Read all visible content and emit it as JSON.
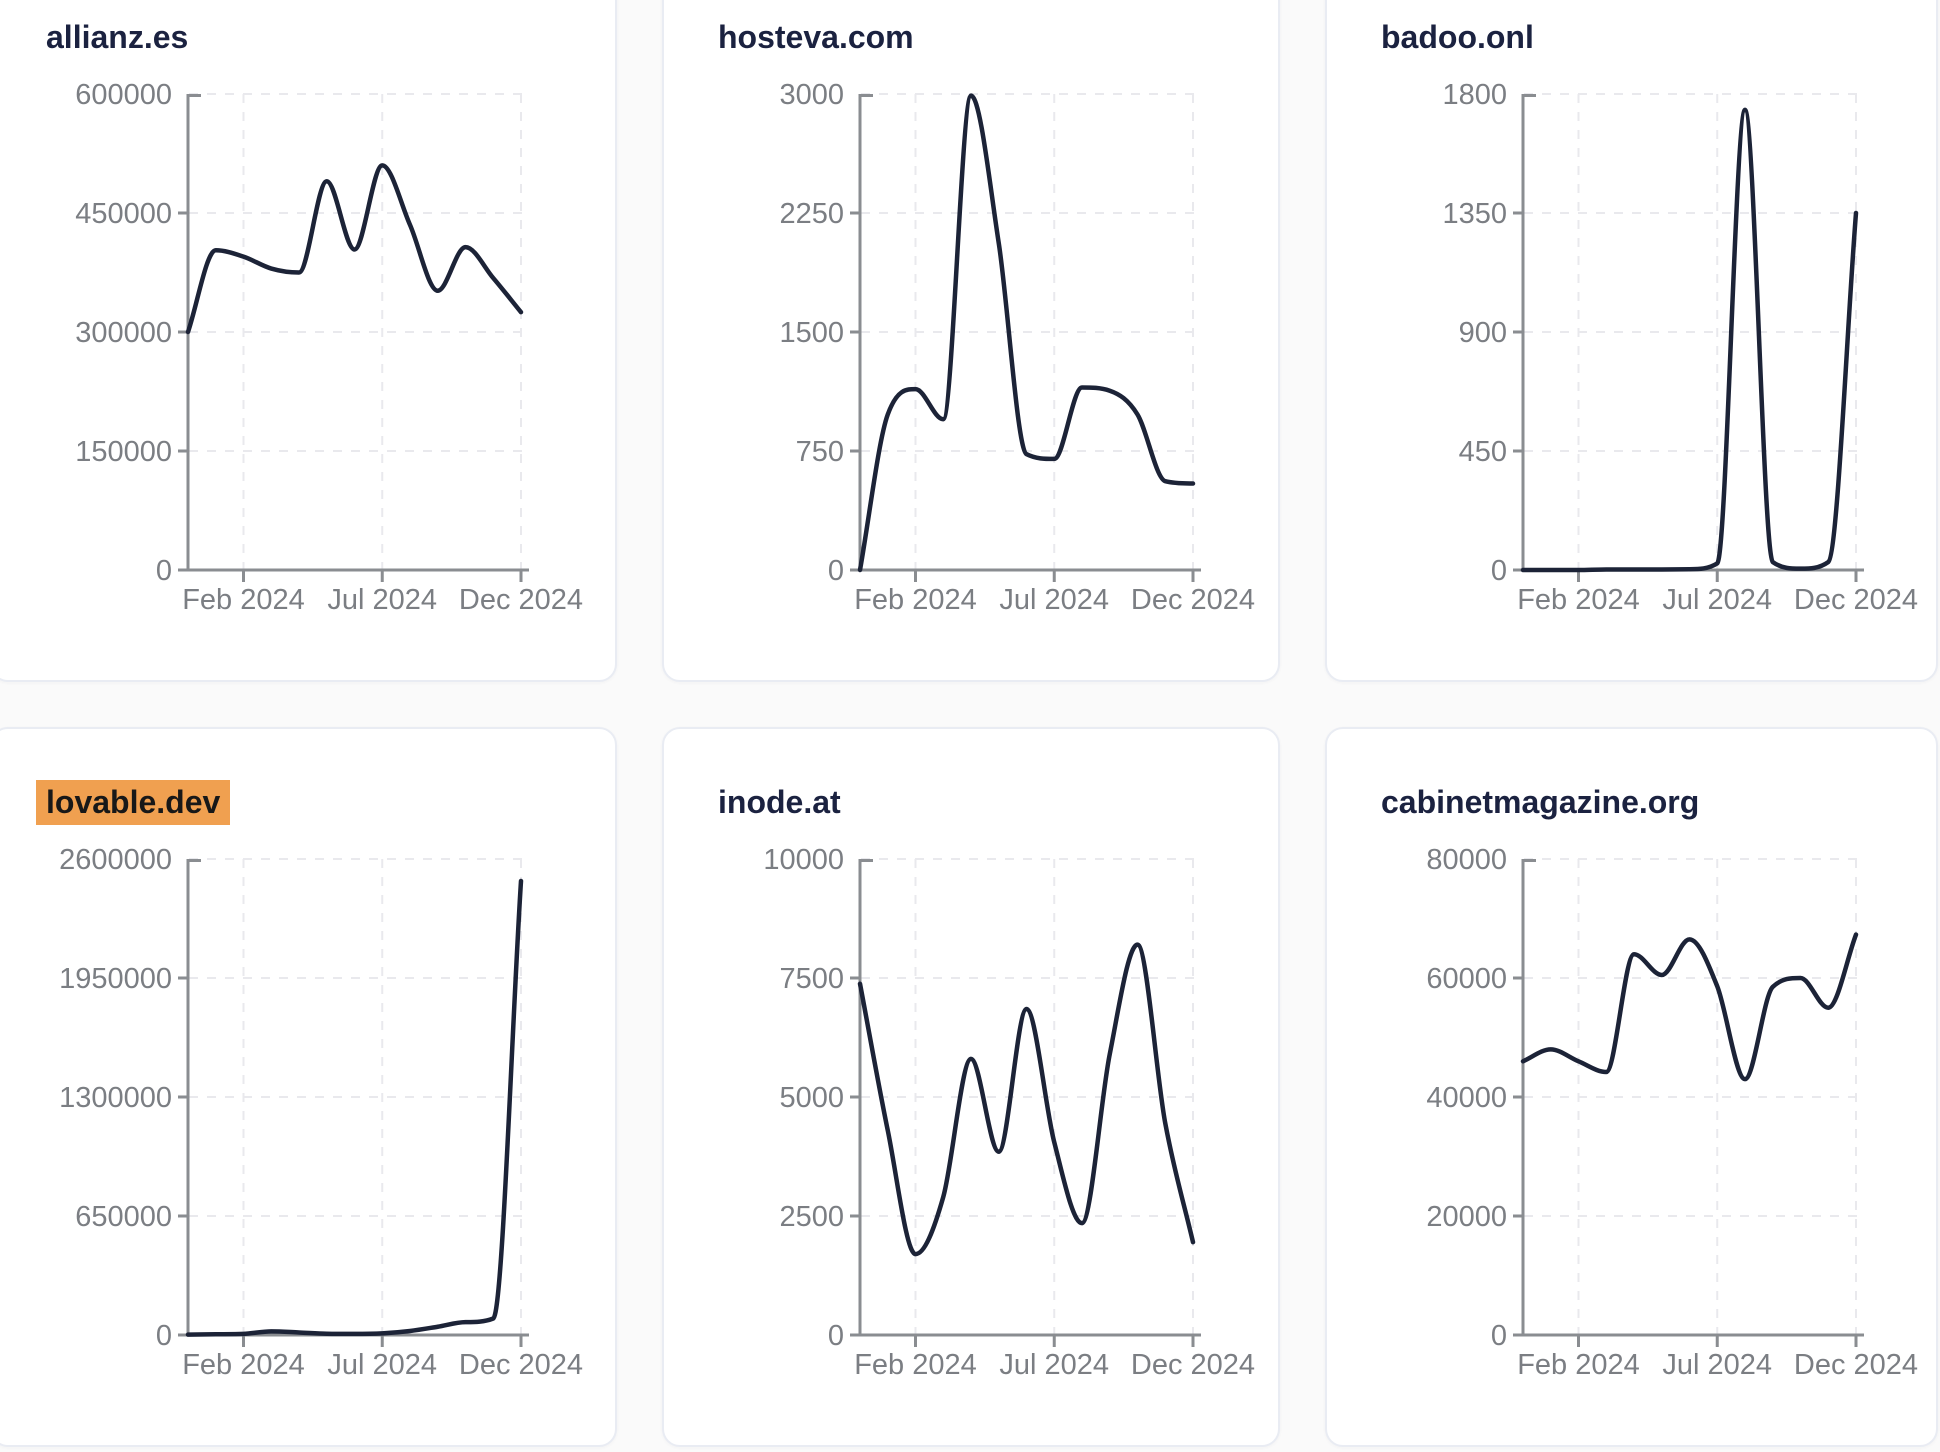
{
  "page": {
    "description": "Dashboard of six sparkline-style traffic charts for domains, Dec 2023 - Dec 2024",
    "x_tick_labels": [
      "Feb 2024",
      "Jul 2024",
      "Dec 2024"
    ]
  },
  "styles": {
    "page_bg": "#fafafa",
    "card_bg": "#ffffff",
    "card_border": "#e9ecf3",
    "title_color": "#1b2240",
    "highlight_bg": "#f0a050",
    "highlight_text": "#181818",
    "line_color": "#1c2337",
    "axis_color": "#8a8d91",
    "tick_label_color": "#7b7e83",
    "grid_color": "#e9e9ed"
  },
  "chart_data": [
    {
      "type": "line",
      "title": "allianz.es",
      "title_highlighted": false,
      "x": [
        "Dec 2023",
        "Jan 2024",
        "Feb 2024",
        "Mar 2024",
        "Apr 2024",
        "May 2024",
        "Jun 2024",
        "Jul 2024",
        "Aug 2024",
        "Sep 2024",
        "Oct 2024",
        "Nov 2024",
        "Dec 2024"
      ],
      "values": [
        300000,
        403000,
        395000,
        380000,
        375000,
        490000,
        404000,
        510000,
        435000,
        352000,
        407000,
        368000,
        325000
      ],
      "y_ticks": [
        0,
        150000,
        300000,
        450000,
        600000
      ],
      "ylim": [
        0,
        600000
      ],
      "x_tick_labels": [
        "Feb 2024",
        "Jul 2024",
        "Dec 2024"
      ],
      "x_tick_indices": [
        2,
        7,
        12
      ],
      "grid": true,
      "legend": false
    },
    {
      "type": "line",
      "title": "hosteva.com",
      "title_highlighted": false,
      "x": [
        "Dec 2023",
        "Jan 2024",
        "Feb 2024",
        "Mar 2024",
        "Apr 2024",
        "May 2024",
        "Jun 2024",
        "Jul 2024",
        "Aug 2024",
        "Sep 2024",
        "Oct 2024",
        "Nov 2024",
        "Dec 2024"
      ],
      "values": [
        0,
        980,
        1140,
        950,
        2990,
        2060,
        730,
        700,
        1150,
        1130,
        980,
        560,
        545
      ],
      "y_ticks": [
        0,
        750,
        1500,
        2250,
        3000
      ],
      "ylim": [
        0,
        3000
      ],
      "x_tick_labels": [
        "Feb 2024",
        "Jul 2024",
        "Dec 2024"
      ],
      "x_tick_indices": [
        2,
        7,
        12
      ],
      "grid": true,
      "legend": false
    },
    {
      "type": "line",
      "title": "badoo.onl",
      "title_highlighted": false,
      "x": [
        "Dec 2023",
        "Jan 2024",
        "Feb 2024",
        "Mar 2024",
        "Apr 2024",
        "May 2024",
        "Jun 2024",
        "Jul 2024",
        "Aug 2024",
        "Sep 2024",
        "Oct 2024",
        "Nov 2024",
        "Dec 2024"
      ],
      "values": [
        0,
        0,
        0,
        2,
        2,
        2,
        3,
        25,
        1740,
        30,
        5,
        30,
        1350
      ],
      "y_ticks": [
        0,
        450,
        900,
        1350,
        1800
      ],
      "ylim": [
        0,
        1800
      ],
      "x_tick_labels": [
        "Feb 2024",
        "Jul 2024",
        "Dec 2024"
      ],
      "x_tick_indices": [
        2,
        7,
        12
      ],
      "grid": true,
      "legend": false
    },
    {
      "type": "line",
      "title": "lovable.dev",
      "title_highlighted": true,
      "x": [
        "Dec 2023",
        "Jan 2024",
        "Feb 2024",
        "Mar 2024",
        "Apr 2024",
        "May 2024",
        "Jun 2024",
        "Jul 2024",
        "Aug 2024",
        "Sep 2024",
        "Oct 2024",
        "Nov 2024",
        "Dec 2024"
      ],
      "values": [
        2000,
        4000,
        6000,
        20000,
        14000,
        7000,
        6000,
        9000,
        22000,
        45000,
        70000,
        90000,
        2480000
      ],
      "y_ticks": [
        0,
        650000,
        1300000,
        1950000,
        2600000
      ],
      "ylim": [
        0,
        2600000
      ],
      "x_tick_labels": [
        "Feb 2024",
        "Jul 2024",
        "Dec 2024"
      ],
      "x_tick_indices": [
        2,
        7,
        12
      ],
      "grid": true,
      "legend": false
    },
    {
      "type": "line",
      "title": "inode.at",
      "title_highlighted": false,
      "x": [
        "Dec 2023",
        "Jan 2024",
        "Feb 2024",
        "Mar 2024",
        "Apr 2024",
        "May 2024",
        "Jun 2024",
        "Jul 2024",
        "Aug 2024",
        "Sep 2024",
        "Oct 2024",
        "Nov 2024",
        "Dec 2024"
      ],
      "values": [
        7380,
        4300,
        1700,
        2900,
        5800,
        3850,
        6850,
        4050,
        2350,
        5900,
        8200,
        4450,
        1950
      ],
      "y_ticks": [
        0,
        2500,
        5000,
        7500,
        10000
      ],
      "ylim": [
        0,
        10000
      ],
      "x_tick_labels": [
        "Feb 2024",
        "Jul 2024",
        "Dec 2024"
      ],
      "x_tick_indices": [
        2,
        7,
        12
      ],
      "grid": true,
      "legend": false
    },
    {
      "type": "line",
      "title": "cabinetmagazine.org",
      "title_highlighted": false,
      "x": [
        "Dec 2023",
        "Jan 2024",
        "Feb 2024",
        "Mar 2024",
        "Apr 2024",
        "May 2024",
        "Jun 2024",
        "Jul 2024",
        "Aug 2024",
        "Sep 2024",
        "Oct 2024",
        "Nov 2024",
        "Dec 2024"
      ],
      "values": [
        46000,
        48000,
        46000,
        44200,
        64000,
        60500,
        66500,
        58600,
        43000,
        58500,
        60000,
        55000,
        67300
      ],
      "y_ticks": [
        0,
        20000,
        40000,
        60000,
        80000
      ],
      "ylim": [
        0,
        80000
      ],
      "x_tick_labels": [
        "Feb 2024",
        "Jul 2024",
        "Dec 2024"
      ],
      "x_tick_indices": [
        2,
        7,
        12
      ],
      "grid": true,
      "legend": false
    }
  ]
}
